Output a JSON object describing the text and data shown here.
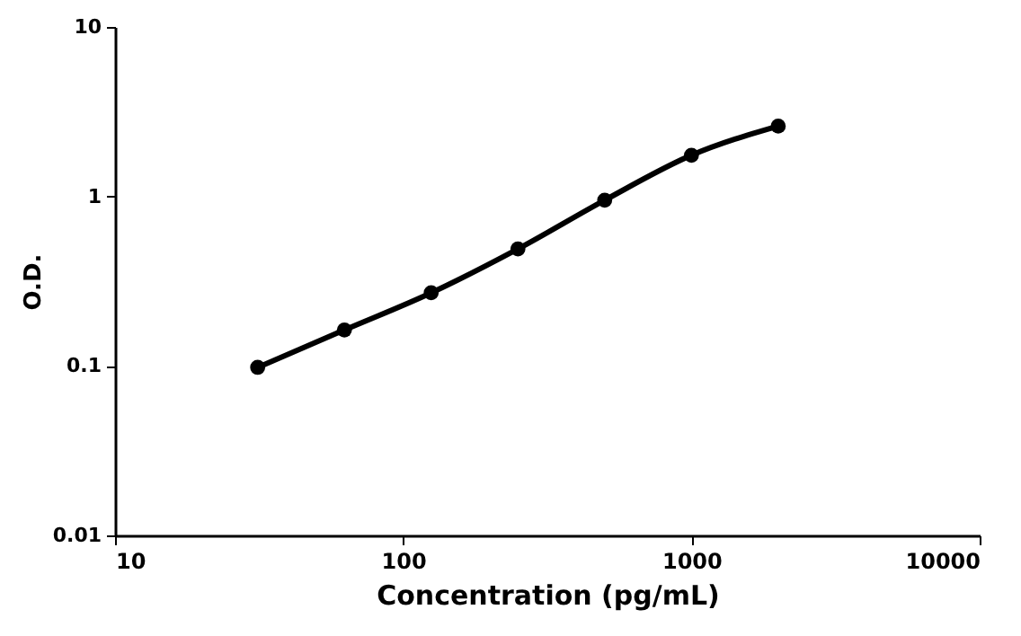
{
  "chart_data": {
    "type": "line",
    "xlabel": "Concentration (pg/mL)",
    "ylabel": "O.D.",
    "x": [
      31.25,
      62.5,
      125,
      250,
      500,
      1000,
      2000
    ],
    "series": [
      {
        "color": "#000000",
        "values": [
          0.098,
          0.163,
          0.27,
          0.49,
          0.95,
          1.75,
          2.6
        ]
      }
    ],
    "log": "xy",
    "xlim": [
      10,
      10000
    ],
    "ylim": [
      0.01,
      10
    ],
    "xticks": [
      10,
      100,
      1000,
      10000
    ],
    "yticks": [
      0.01,
      0.1,
      1,
      10
    ],
    "grid": false,
    "marker": "circle",
    "line_style": "solid"
  }
}
